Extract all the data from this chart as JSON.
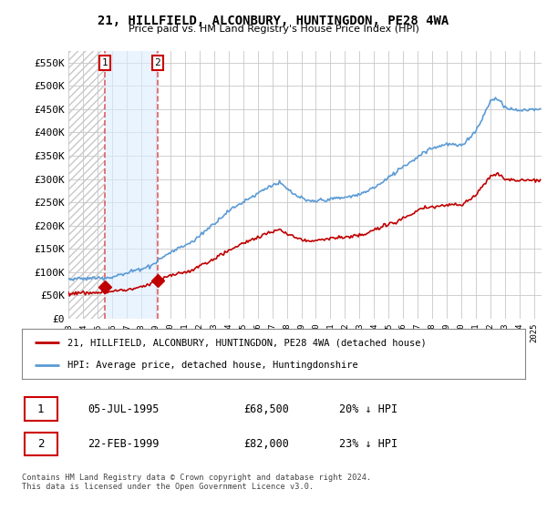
{
  "title": "21, HILLFIELD, ALCONBURY, HUNTINGDON, PE28 4WA",
  "subtitle": "Price paid vs. HM Land Registry's House Price Index (HPI)",
  "legend_line1": "21, HILLFIELD, ALCONBURY, HUNTINGDON, PE28 4WA (detached house)",
  "legend_line2": "HPI: Average price, detached house, Huntingdonshire",
  "purchase1_date": "05-JUL-1995",
  "purchase1_price": 68500,
  "purchase1_label": "£68,500",
  "purchase1_pct": "20% ↓ HPI",
  "purchase2_date": "22-FEB-1999",
  "purchase2_price": 82000,
  "purchase2_label": "£82,000",
  "purchase2_pct": "23% ↓ HPI",
  "footer": "Contains HM Land Registry data © Crown copyright and database right 2024.\nThis data is licensed under the Open Government Licence v3.0.",
  "ylim": [
    0,
    575000
  ],
  "ytick_vals": [
    0,
    50000,
    100000,
    150000,
    200000,
    250000,
    300000,
    350000,
    400000,
    450000,
    500000,
    550000
  ],
  "ytick_labels": [
    "£0",
    "£50K",
    "£100K",
    "£150K",
    "£200K",
    "£250K",
    "£300K",
    "£350K",
    "£400K",
    "£450K",
    "£500K",
    "£550K"
  ],
  "hpi_color": "#5b9bd5",
  "price_color": "#c00000",
  "vline_color": "#e06060",
  "vline1_x": 1995.5,
  "vline2_x": 1999.12,
  "marker1_x": 1995.5,
  "marker1_y": 68500,
  "marker2_x": 1999.12,
  "marker2_y": 82000,
  "xlim_left": 1993.0,
  "xlim_right": 2025.5,
  "bg_color": "#ffffff",
  "plot_bg": "#ffffff",
  "grid_color": "#c8c8c8",
  "hatch_color": "#c8c8c8",
  "shade_color": "#ddeeff",
  "label1_box_color": "#cc0000",
  "label2_box_color": "#cc0000"
}
